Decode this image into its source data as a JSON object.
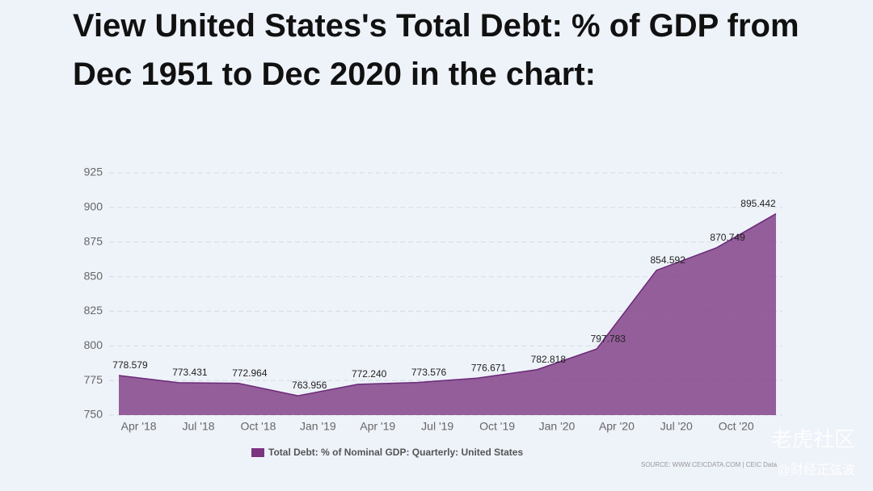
{
  "chart_data": {
    "type": "area",
    "title": "View United States's Total Debt: % of GDP from Dec 1951 to Dec 2020 in the chart:",
    "x_labels": [
      "Apr '18",
      "Jul '18",
      "Oct '18",
      "Jan '19",
      "Apr '19",
      "Jul '19",
      "Oct '19",
      "Jan '20",
      "Apr '20",
      "Jul '20",
      "Oct '20"
    ],
    "series": [
      {
        "name": "Total Debt: % of Nominal GDP: Quarterly: United States",
        "color": "#7b3580",
        "values": [
          778.579,
          773.431,
          772.964,
          763.956,
          772.24,
          773.576,
          776.671,
          782.818,
          797.783,
          854.592,
          870.749,
          895.442
        ],
        "value_labels": [
          "778.579",
          "773.431",
          "772.964",
          "763.956",
          "772.240",
          "773.576",
          "776.671",
          "782.818",
          "797.783",
          "854.592",
          "870.749",
          "895.442"
        ]
      }
    ],
    "ylim": [
      750,
      925
    ],
    "yticks": [
      750,
      775,
      800,
      825,
      850,
      875,
      900,
      925
    ],
    "grid": true,
    "legend": "bottom",
    "source": "SOURCE: WWW.CEICDATA.COM | CEIC Data",
    "watermark": [
      "老虎社区",
      "@财经正弦波"
    ]
  }
}
